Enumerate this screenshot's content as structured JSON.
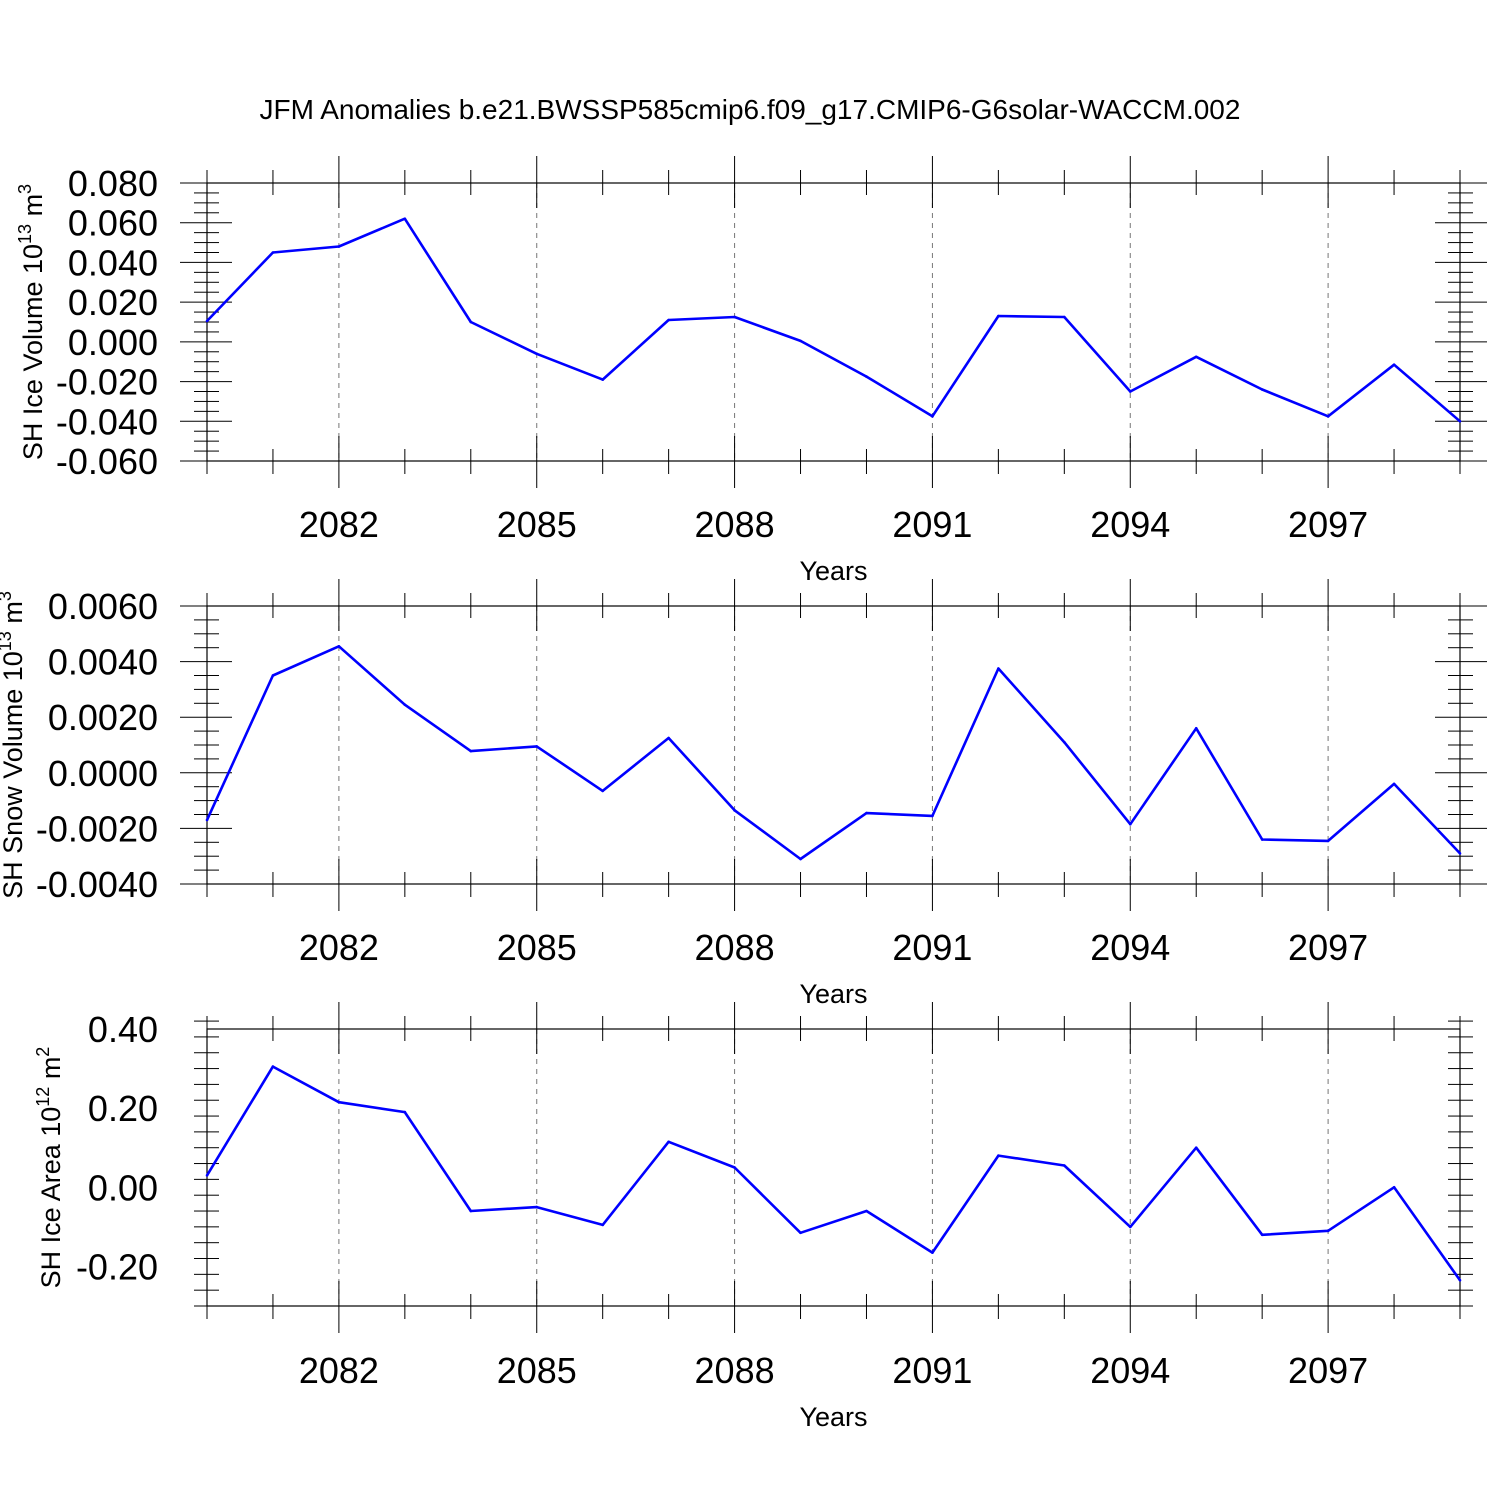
{
  "title": "JFM Anomalies b.e21.BWSSP585cmip6.f09_g17.CMIP6-G6solar-WACCM.002",
  "line_color": "#0000ff",
  "chart_data": [
    {
      "type": "line",
      "title": "",
      "xlabel": "Years",
      "ylabel": {
        "text": "SH Ice Volume 10",
        "sup1": "13",
        "unit": " m",
        "sup2": "3"
      },
      "xlim": [
        2080,
        2099
      ],
      "xticks": [
        2082,
        2085,
        2088,
        2091,
        2094,
        2097
      ],
      "xtick_labels": [
        "2082",
        "2085",
        "2088",
        "2091",
        "2094",
        "2097"
      ],
      "ylim": [
        -0.06,
        0.08
      ],
      "yticks": [
        0.08,
        0.06,
        0.04,
        0.02,
        0.0,
        -0.02,
        -0.04,
        -0.06
      ],
      "ytick_labels": [
        "0.080",
        "0.060",
        "0.040",
        "0.020",
        "0.000",
        "-0.020",
        "-0.040",
        "-0.060"
      ],
      "minor_ystep": 0.005,
      "grid": "vertical dashed at major x ticks",
      "series": [
        {
          "x": [
            2080,
            2081,
            2082,
            2083,
            2084,
            2085,
            2086,
            2087,
            2088,
            2089,
            2090,
            2091,
            2092,
            2093,
            2094,
            2095,
            2096,
            2097,
            2098,
            2099
          ],
          "y": [
            0.0105,
            0.045,
            0.048,
            0.062,
            0.01,
            -0.006,
            -0.019,
            0.011,
            0.0125,
            0.0005,
            -0.0175,
            -0.0375,
            0.013,
            0.0125,
            -0.025,
            -0.0075,
            -0.024,
            -0.0375,
            -0.0115,
            -0.04
          ]
        }
      ]
    },
    {
      "type": "line",
      "title": "",
      "xlabel": "Years",
      "ylabel": {
        "text": "SH Snow Volume 10",
        "sup1": "13",
        "unit": " m",
        "sup2": "3"
      },
      "xlim": [
        2080,
        2099
      ],
      "xticks": [
        2082,
        2085,
        2088,
        2091,
        2094,
        2097
      ],
      "xtick_labels": [
        "2082",
        "2085",
        "2088",
        "2091",
        "2094",
        "2097"
      ],
      "ylim": [
        -0.004,
        0.006
      ],
      "yticks": [
        0.006,
        0.004,
        0.002,
        0.0,
        -0.002,
        -0.004
      ],
      "ytick_labels": [
        "0.0060",
        "0.0040",
        "0.0020",
        "0.0000",
        "-0.0020",
        "-0.0040"
      ],
      "minor_ystep": 0.0005,
      "grid": "vertical dashed at major x ticks",
      "series": [
        {
          "x": [
            2080,
            2081,
            2082,
            2083,
            2084,
            2085,
            2086,
            2087,
            2088,
            2089,
            2090,
            2091,
            2092,
            2093,
            2094,
            2095,
            2096,
            2097,
            2098,
            2099
          ],
          "y": [
            -0.0017,
            0.0035,
            0.00455,
            0.00245,
            0.00078,
            0.00095,
            -0.00065,
            0.00125,
            -0.00135,
            -0.0031,
            -0.00145,
            -0.00155,
            0.00375,
            0.0011,
            -0.00185,
            0.0016,
            -0.0024,
            -0.00245,
            -0.0004,
            -0.0029
          ]
        }
      ]
    },
    {
      "type": "line",
      "title": "",
      "xlabel": "Years",
      "ylabel": {
        "text": "SH Ice Area 10",
        "sup1": "12",
        "unit": " m",
        "sup2": "2"
      },
      "xlim": [
        2080,
        2099
      ],
      "xticks": [
        2082,
        2085,
        2088,
        2091,
        2094,
        2097
      ],
      "xtick_labels": [
        "2082",
        "2085",
        "2088",
        "2091",
        "2094",
        "2097"
      ],
      "ylim": [
        -0.3,
        0.4
      ],
      "yticks": [
        0.4,
        0.2,
        0.0,
        -0.2
      ],
      "ytick_labels": [
        "0.40",
        "0.20",
        "0.00",
        "-0.20"
      ],
      "minor_ystep": 0.04,
      "grid": "vertical dashed at major x ticks",
      "series": [
        {
          "x": [
            2080,
            2081,
            2082,
            2083,
            2084,
            2085,
            2086,
            2087,
            2088,
            2089,
            2090,
            2091,
            2092,
            2093,
            2094,
            2095,
            2096,
            2097,
            2098,
            2099
          ],
          "y": [
            0.03,
            0.305,
            0.215,
            0.19,
            -0.06,
            -0.05,
            -0.095,
            0.115,
            0.05,
            -0.115,
            -0.06,
            -0.165,
            0.08,
            0.055,
            -0.1,
            0.1,
            -0.12,
            -0.11,
            0.0,
            -0.235
          ]
        }
      ]
    }
  ]
}
